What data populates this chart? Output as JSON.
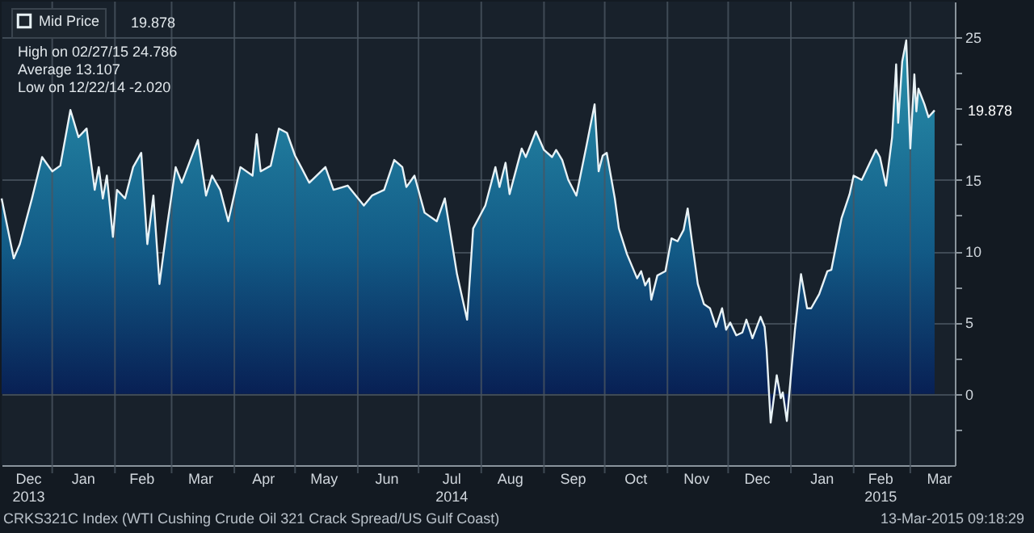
{
  "chart_data": {
    "type": "area",
    "x": [
      "2013-12-07",
      "2013-12-13",
      "2013-12-16",
      "2013-12-22",
      "2013-12-27",
      "2014-01-01",
      "2014-01-05",
      "2014-01-10",
      "2014-01-14",
      "2014-01-18",
      "2014-01-22",
      "2014-01-24",
      "2014-01-26",
      "2014-01-28",
      "2014-01-31",
      "2014-02-02",
      "2014-02-06",
      "2014-02-10",
      "2014-02-14",
      "2014-02-17",
      "2014-02-20",
      "2014-02-23",
      "2014-02-27",
      "2014-03-03",
      "2014-03-06",
      "2014-03-14",
      "2014-03-18",
      "2014-03-21",
      "2014-03-25",
      "2014-03-29",
      "2014-04-04",
      "2014-04-10",
      "2014-04-12",
      "2014-04-14",
      "2014-04-19",
      "2014-04-23",
      "2014-04-27",
      "2014-05-01",
      "2014-05-04",
      "2014-05-08",
      "2014-05-16",
      "2014-05-20",
      "2014-05-27",
      "2014-06-04",
      "2014-06-08",
      "2014-06-14",
      "2014-06-19",
      "2014-06-23",
      "2014-06-25",
      "2014-06-29",
      "2014-07-04",
      "2014-07-10",
      "2014-07-14",
      "2014-07-20",
      "2014-07-25",
      "2014-07-28",
      "2014-07-31",
      "2014-08-03",
      "2014-08-08",
      "2014-08-10",
      "2014-08-13",
      "2014-08-15",
      "2014-08-21",
      "2014-08-23",
      "2014-08-28",
      "2014-09-01",
      "2014-09-05",
      "2014-09-07",
      "2014-09-10",
      "2014-09-13",
      "2014-09-17",
      "2014-09-22",
      "2014-09-26",
      "2014-09-28",
      "2014-09-30",
      "2014-10-02",
      "2014-10-06",
      "2014-10-08",
      "2014-10-12",
      "2014-10-17",
      "2014-10-19",
      "2014-10-21",
      "2014-10-23",
      "2014-10-24",
      "2014-10-27",
      "2014-10-31",
      "2014-11-03",
      "2014-11-06",
      "2014-11-09",
      "2014-11-11",
      "2014-11-13",
      "2014-11-16",
      "2014-11-19",
      "2014-11-22",
      "2014-11-25",
      "2014-11-28",
      "2014-11-30",
      "2014-12-02",
      "2014-12-05",
      "2014-12-08",
      "2014-12-10",
      "2014-12-13",
      "2014-12-17",
      "2014-12-19",
      "2014-12-20",
      "2014-12-22",
      "2014-12-25",
      "2014-12-27",
      "2014-12-28",
      "2014-12-30",
      "2015-01-01",
      "2015-01-03",
      "2015-01-06",
      "2015-01-09",
      "2015-01-11",
      "2015-01-15",
      "2015-01-19",
      "2015-01-21",
      "2015-01-24",
      "2015-01-26",
      "2015-01-30",
      "2015-02-01",
      "2015-02-05",
      "2015-02-12",
      "2015-02-14",
      "2015-02-17",
      "2015-02-20",
      "2015-02-22",
      "2015-02-23",
      "2015-02-25",
      "2015-02-27",
      "2015-03-01",
      "2015-03-03",
      "2015-03-04",
      "2015-03-05",
      "2015-03-08",
      "2015-03-10",
      "2015-03-13"
    ],
    "series": [
      {
        "name": "Mid Price",
        "color": "#e8f2f6",
        "values": [
          13.7,
          9.5,
          10.5,
          13.7,
          16.6,
          15.6,
          16.0,
          19.9,
          18.0,
          18.6,
          14.3,
          15.9,
          13.7,
          15.3,
          11.0,
          14.3,
          13.7,
          15.9,
          16.9,
          10.5,
          13.9,
          7.7,
          12.0,
          15.9,
          14.8,
          17.8,
          13.9,
          15.3,
          14.3,
          12.1,
          15.9,
          15.3,
          18.2,
          15.6,
          16.0,
          18.6,
          18.3,
          16.7,
          15.9,
          14.8,
          15.9,
          14.3,
          14.6,
          13.2,
          13.9,
          14.3,
          16.4,
          15.9,
          14.5,
          15.3,
          12.7,
          12.1,
          13.7,
          8.4,
          5.2,
          11.6,
          12.4,
          13.2,
          15.9,
          14.5,
          16.2,
          14.0,
          17.2,
          16.6,
          18.4,
          17.1,
          16.6,
          17.1,
          16.4,
          15.0,
          13.9,
          17.4,
          20.3,
          15.6,
          16.7,
          16.9,
          13.7,
          11.6,
          9.8,
          8.1,
          8.6,
          7.6,
          8.1,
          6.6,
          8.3,
          8.6,
          10.9,
          10.7,
          11.5,
          13.0,
          10.8,
          7.7,
          6.3,
          6.0,
          4.7,
          6.0,
          4.5,
          5.0,
          4.1,
          4.3,
          5.2,
          3.9,
          5.4,
          4.7,
          3.1,
          -2.02,
          1.3,
          -0.3,
          0.1,
          -1.9,
          1.3,
          4.5,
          8.4,
          6.0,
          6.0,
          7.0,
          8.6,
          8.7,
          10.9,
          12.3,
          14.0,
          15.3,
          15.0,
          17.1,
          16.6,
          14.6,
          18.0,
          23.1,
          19.0,
          23.3,
          24.786,
          17.2,
          22.4,
          19.8,
          21.4,
          20.3,
          19.4,
          19.878
        ]
      }
    ],
    "xlim": [
      "2013-12-07",
      "2015-03-23"
    ],
    "xticks": [
      {
        "value": "2013-12-20",
        "label": "Dec\n2013"
      },
      {
        "value": "2014-01-01",
        "label": null
      },
      {
        "value": "2014-01-16",
        "label": "Jan"
      },
      {
        "value": "2014-02-01",
        "label": null
      },
      {
        "value": "2014-02-14",
        "label": "Feb"
      },
      {
        "value": "2014-03-01",
        "label": null
      },
      {
        "value": "2014-03-15",
        "label": "Mar"
      },
      {
        "value": "2014-04-01",
        "label": null
      },
      {
        "value": "2014-04-15",
        "label": "Apr"
      },
      {
        "value": "2014-05-01",
        "label": null
      },
      {
        "value": "2014-05-15",
        "label": "May"
      },
      {
        "value": "2014-06-01",
        "label": null
      },
      {
        "value": "2014-06-15",
        "label": "Jun"
      },
      {
        "value": "2014-07-01",
        "label": null
      },
      {
        "value": "2014-07-17",
        "label": "Jul\n2014"
      },
      {
        "value": "2014-08-01",
        "label": null
      },
      {
        "value": "2014-08-15",
        "label": "Aug"
      },
      {
        "value": "2014-09-01",
        "label": null
      },
      {
        "value": "2014-09-15",
        "label": "Sep"
      },
      {
        "value": "2014-10-01",
        "label": null
      },
      {
        "value": "2014-10-16",
        "label": "Oct"
      },
      {
        "value": "2014-11-01",
        "label": null
      },
      {
        "value": "2014-11-15",
        "label": "Nov"
      },
      {
        "value": "2014-12-01",
        "label": null
      },
      {
        "value": "2014-12-15",
        "label": "Dec"
      },
      {
        "value": "2015-01-01",
        "label": null
      },
      {
        "value": "2015-01-16",
        "label": "Jan"
      },
      {
        "value": "2015-02-01",
        "label": null
      },
      {
        "value": "2015-02-14",
        "label": "Feb\n2015"
      },
      {
        "value": "2015-03-01",
        "label": null
      },
      {
        "value": "2015-03-15",
        "label": "Mar"
      }
    ],
    "ylim": [
      -5,
      27.5
    ],
    "yticks": [
      {
        "value": -2.5,
        "label": null
      },
      0,
      {
        "value": 2.5,
        "label": null
      },
      5,
      {
        "value": 7.5,
        "label": null
      },
      10,
      {
        "value": 12.5,
        "label": null
      },
      15,
      {
        "value": 17.5,
        "label": null
      },
      {
        "value": 20,
        "label": null
      },
      {
        "value": 22.5,
        "label": null
      },
      25
    ],
    "grid": true,
    "legend": "top left",
    "annotations": [
      "19.878",
      "High on 02/27/15 24.786",
      "Average 13.107",
      "Low on 12/22/14 -2.020",
      {
        "text": "19.878",
        "x": "2015-03-13",
        "y": 19.878
      },
      "CRKS321C Index (WTI Cushing Crude Oil 321 Crack Spread/US Gulf Coast)",
      "13-Mar-2015 09:18:29"
    ]
  }
}
